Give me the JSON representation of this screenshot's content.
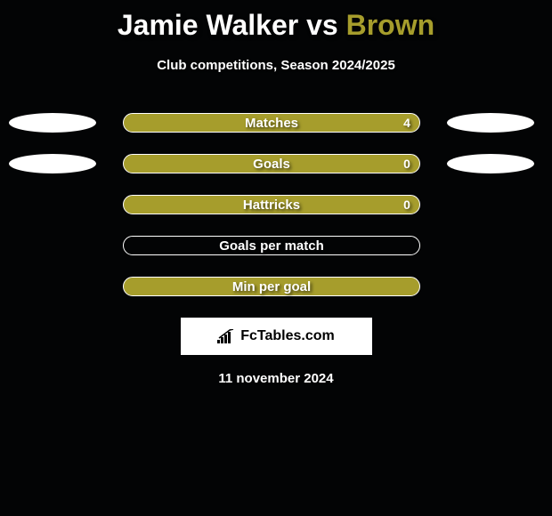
{
  "title": {
    "player1": "Jamie Walker",
    "vs": "vs",
    "player2": "Brown",
    "player1_color": "#ffffff",
    "player2_color": "#a69d2c"
  },
  "subtitle": "Club competitions, Season 2024/2025",
  "background_color": "#030405",
  "bar_fill_color": "#a69d2c",
  "bar_border_color": "#ffffff",
  "ellipse_color": "#ffffff",
  "rows": [
    {
      "label": "Matches",
      "value": "4",
      "filled": true,
      "show_left_ellipse": true,
      "show_right_ellipse": true,
      "show_value": true
    },
    {
      "label": "Goals",
      "value": "0",
      "filled": true,
      "show_left_ellipse": true,
      "show_right_ellipse": true,
      "show_value": true
    },
    {
      "label": "Hattricks",
      "value": "0",
      "filled": true,
      "show_left_ellipse": false,
      "show_right_ellipse": false,
      "show_value": true
    },
    {
      "label": "Goals per match",
      "value": "",
      "filled": false,
      "show_left_ellipse": false,
      "show_right_ellipse": false,
      "show_value": false
    },
    {
      "label": "Min per goal",
      "value": "",
      "filled": true,
      "show_left_ellipse": false,
      "show_right_ellipse": false,
      "show_value": false
    }
  ],
  "logo": {
    "text": "FcTables.com",
    "background": "#ffffff",
    "text_color": "#000000"
  },
  "date": "11 november 2024"
}
